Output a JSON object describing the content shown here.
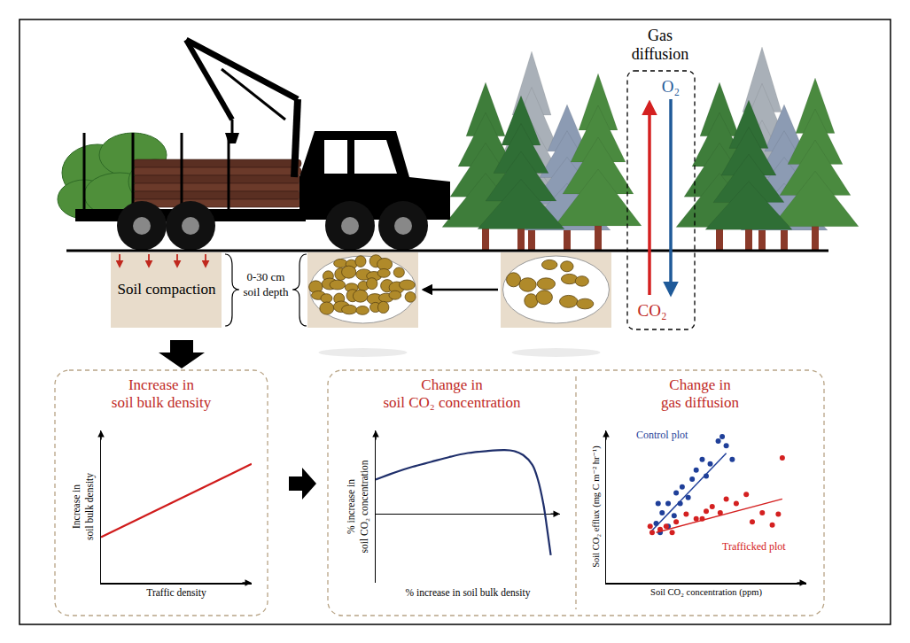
{
  "diagram": {
    "soil_compaction": "Soil compaction",
    "soil_depth": "0-30 cm\nsoil depth",
    "gas_diffusion": "Gas\ndiffusion",
    "o2": "O₂",
    "co2": "CO₂"
  },
  "chart_data": [
    {
      "type": "line",
      "title": "Increase in\nsoil bulk density",
      "x_label": "Traffic density",
      "y_label": "Increase in\nsoil bulk density",
      "xlim": [
        0,
        100
      ],
      "ylim": [
        0,
        100
      ],
      "tick_labels": false,
      "grid": false,
      "series": [
        {
          "color": "#d01c1c",
          "x": [
            0,
            100
          ],
          "values": [
            30,
            78
          ]
        }
      ]
    },
    {
      "type": "line",
      "title": "Change in\nsoil CO₂ concentration",
      "x_label": "% increase in soil bulk density",
      "y_label": "% increase in\nsoil CO₂ concentration",
      "xlim": [
        0,
        100
      ],
      "ylim": [
        -70,
        85
      ],
      "tick_labels": false,
      "grid": false,
      "series": [
        {
          "color": "#1f2f6b",
          "x": [
            0,
            10,
            20,
            30,
            40,
            50,
            60,
            70,
            75,
            80,
            85,
            88,
            91,
            93,
            95
          ],
          "values": [
            35,
            42,
            48,
            53,
            58,
            62,
            64,
            65,
            64,
            60,
            50,
            35,
            10,
            -15,
            -42
          ]
        }
      ]
    },
    {
      "type": "scatter",
      "title": "Change in\ngas diffusion",
      "x_label": "Soil CO₂ concentration (ppm)",
      "y_label": "Soil CO₂ efflux (mg C m⁻² hr⁻¹)",
      "xlim": [
        0,
        100
      ],
      "ylim": [
        0,
        100
      ],
      "tick_labels": false,
      "grid": false,
      "series": [
        {
          "name": "Control plot",
          "color": "#1f3f99",
          "x": [
            25,
            28,
            31,
            26,
            35,
            38,
            43,
            45,
            48,
            50,
            52,
            56,
            58,
            63,
            60,
            37,
            31,
            27,
            34,
            41
          ],
          "values": [
            39,
            46,
            52,
            52,
            59,
            63,
            68,
            74,
            81,
            70,
            78,
            93,
            96,
            81,
            90,
            52,
            37,
            33,
            44,
            56
          ],
          "trend_x": [
            22,
            60
          ],
          "trend_values": [
            33,
            85
          ]
        },
        {
          "name": "Trafficked plot",
          "color": "#d42020",
          "x": [
            23,
            27,
            30,
            35,
            40,
            45,
            50,
            53,
            57,
            60,
            65,
            70,
            73,
            78,
            83,
            88,
            86,
            22,
            33,
            48
          ],
          "values": [
            33,
            35,
            37,
            40,
            45,
            42,
            47,
            50,
            46,
            55,
            52,
            58,
            40,
            46,
            38,
            82,
            45,
            37,
            33,
            42
          ],
          "trend_x": [
            25,
            88
          ],
          "trend_values": [
            33,
            55
          ]
        }
      ]
    }
  ]
}
